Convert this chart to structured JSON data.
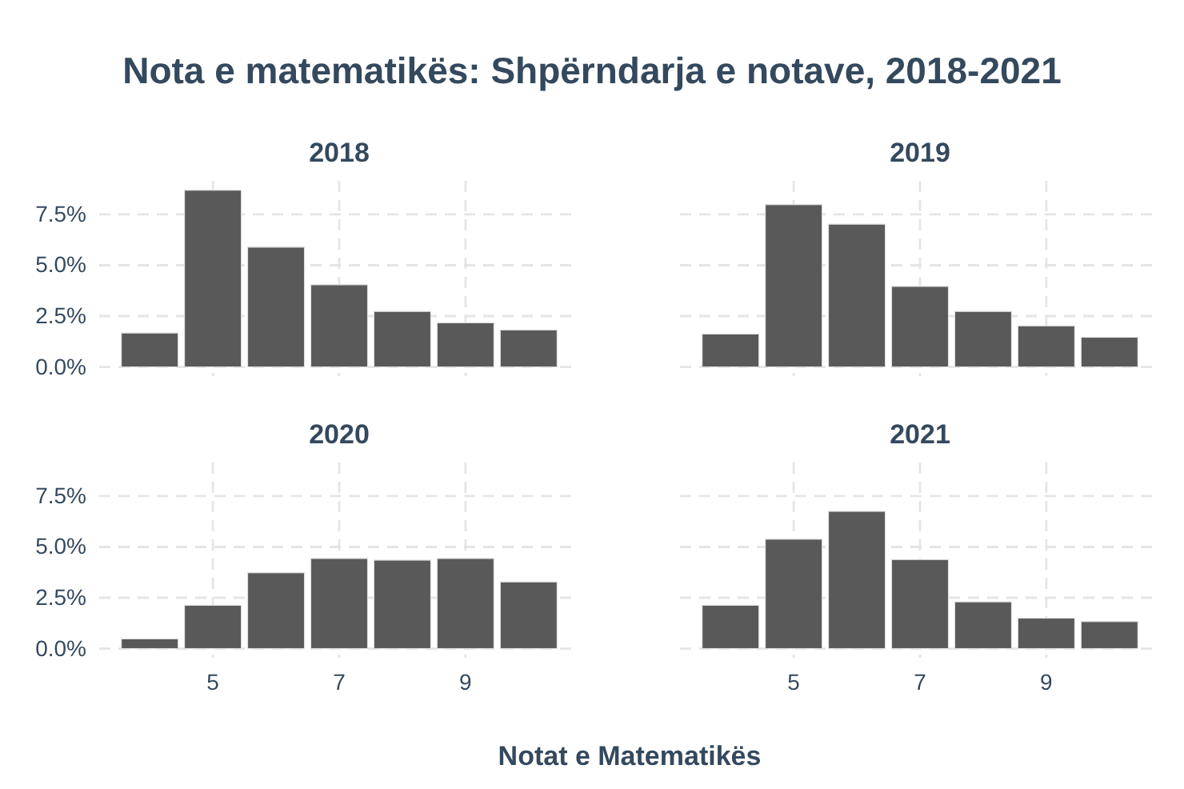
{
  "chart_data": [
    {
      "type": "bar",
      "title": "2018",
      "annotations": [
        "Nota e matematikës: Shpërndarja e notave, 2018-2021"
      ],
      "x": [
        4,
        5,
        6,
        7,
        8,
        9,
        10
      ],
      "values": [
        1.67,
        8.69,
        5.89,
        4.04,
        2.73,
        2.17,
        1.82
      ],
      "color": "#595959",
      "xlim": [
        3.2,
        10.8
      ],
      "ylim": [
        -0.45,
        9.15
      ],
      "xticks": [
        5,
        7,
        9
      ],
      "yticks": [
        {
          "value": 0,
          "label": "0.0%"
        },
        {
          "value": 2.5,
          "label": "2.5%"
        },
        {
          "value": 5,
          "label": "5.0%"
        },
        {
          "value": 7.5,
          "label": "7.5%"
        }
      ],
      "grid": true,
      "tick_labels": "y"
    },
    {
      "type": "bar",
      "title": "2019",
      "x": [
        4,
        5,
        6,
        7,
        8,
        9,
        10
      ],
      "values": [
        1.62,
        7.98,
        7.02,
        3.96,
        2.73,
        2.02,
        1.46
      ],
      "color": "#595959",
      "xlim": [
        3.2,
        10.8
      ],
      "ylim": [
        -0.45,
        9.15
      ],
      "xticks": [
        5,
        7,
        9
      ],
      "yticks": [
        {
          "value": 0,
          "label": null
        },
        {
          "value": 2.5,
          "label": null
        },
        {
          "value": 5,
          "label": null
        },
        {
          "value": 7.5,
          "label": null
        }
      ],
      "grid": true,
      "tick_labels": false
    },
    {
      "type": "bar",
      "title": "2020",
      "xlabel": "Notat e Matematikës",
      "x": [
        4,
        5,
        6,
        7,
        8,
        9,
        10
      ],
      "values": [
        0.48,
        2.13,
        3.73,
        4.43,
        4.35,
        4.43,
        3.28
      ],
      "color": "#595959",
      "xlim": [
        3.2,
        10.8
      ],
      "ylim": [
        -0.45,
        9.15
      ],
      "xticks": [
        5,
        7,
        9
      ],
      "yticks": [
        {
          "value": 0,
          "label": "0.0%"
        },
        {
          "value": 2.5,
          "label": "2.5%"
        },
        {
          "value": 5,
          "label": "5.0%"
        },
        {
          "value": 7.5,
          "label": "7.5%"
        }
      ],
      "grid": true
    },
    {
      "type": "bar",
      "title": "2021",
      "x": [
        4,
        5,
        6,
        7,
        8,
        9,
        10
      ],
      "values": [
        2.13,
        5.38,
        6.75,
        4.38,
        2.3,
        1.5,
        1.33
      ],
      "color": "#595959",
      "xlim": [
        3.2,
        10.8
      ],
      "ylim": [
        -0.45,
        9.15
      ],
      "xticks": [
        5,
        7,
        9
      ],
      "yticks": [
        {
          "value": 0,
          "label": null
        },
        {
          "value": 2.5,
          "label": null
        },
        {
          "value": 5,
          "label": null
        },
        {
          "value": 7.5,
          "label": null
        }
      ],
      "grid": true,
      "tick_labels": "x"
    }
  ]
}
